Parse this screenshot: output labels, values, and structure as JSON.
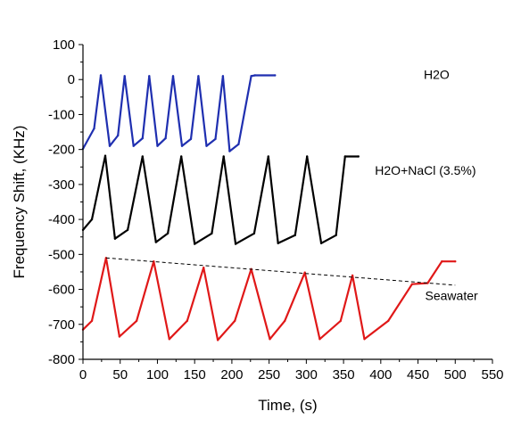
{
  "chart_data": {
    "type": "line",
    "xlabel": "Time, (s)",
    "ylabel": "Frequency Shift, (KHz)",
    "xlim": [
      0,
      550
    ],
    "ylim": [
      -800,
      100
    ],
    "xticks": [
      0,
      50,
      100,
      150,
      200,
      250,
      300,
      350,
      400,
      450,
      500,
      550
    ],
    "yticks": [
      100,
      0,
      -100,
      -200,
      -300,
      -400,
      -500,
      -600,
      -700,
      -800
    ],
    "grid": false,
    "series": [
      {
        "name": "H2O",
        "color": "#1f2fb0",
        "x": [
          0,
          15,
          24,
          36,
          47,
          56,
          68,
          80,
          89,
          100,
          111,
          121,
          133,
          145,
          155,
          166,
          178,
          188,
          197,
          209,
          226,
          231,
          258
        ],
        "y": [
          -198,
          -140,
          12,
          -190,
          -160,
          10,
          -190,
          -168,
          10,
          -190,
          -168,
          10,
          -190,
          -170,
          10,
          -190,
          -170,
          10,
          -205,
          -185,
          10,
          12,
          12
        ]
      },
      {
        "name": "H2O+NaCl (3.5%)",
        "color": "#000000",
        "x": [
          0,
          12,
          30,
          43,
          60,
          80,
          98,
          114,
          132,
          150,
          173,
          189,
          205,
          230,
          249,
          262,
          285,
          301,
          320,
          340,
          352,
          370
        ],
        "y": [
          -430,
          -400,
          -218,
          -455,
          -430,
          -220,
          -465,
          -440,
          -220,
          -470,
          -440,
          -220,
          -470,
          -440,
          -220,
          -468,
          -445,
          -220,
          -468,
          -445,
          -220,
          -220
        ]
      },
      {
        "name": "Seawater",
        "color": "#e01818",
        "x": [
          0,
          12,
          31,
          49,
          72,
          95,
          116,
          140,
          162,
          181,
          204,
          226,
          251,
          271,
          298,
          318,
          346,
          362,
          378,
          410,
          442,
          463,
          482,
          500
        ],
        "y": [
          -715,
          -690,
          -510,
          -735,
          -690,
          -520,
          -742,
          -690,
          -538,
          -745,
          -690,
          -542,
          -742,
          -690,
          -552,
          -742,
          -690,
          -560,
          -742,
          -690,
          -585,
          -582,
          -520,
          -520
        ]
      }
    ],
    "annotations": [
      {
        "text": "H2O",
        "x": 475,
        "y": 2
      },
      {
        "text": "H2O+NaCl (3.5%)",
        "x": 460,
        "y": -272
      },
      {
        "text": "Seawater",
        "x": 495,
        "y": -630
      }
    ],
    "trend_line": {
      "x": [
        31,
        500
      ],
      "y": [
        -510,
        -588
      ],
      "style": "dashed"
    }
  }
}
